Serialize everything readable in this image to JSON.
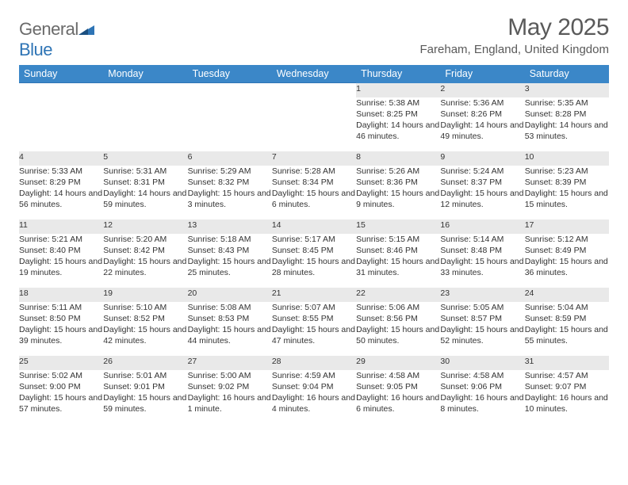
{
  "brand": {
    "name_a": "General",
    "name_b": "Blue"
  },
  "title": "May 2025",
  "location": "Fareham, England, United Kingdom",
  "colors": {
    "header_bg": "#3b87c8",
    "rule": "#2e74b5",
    "daynum_bg": "#e9e9e9",
    "text": "#333333"
  },
  "weekdays": [
    "Sunday",
    "Monday",
    "Tuesday",
    "Wednesday",
    "Thursday",
    "Friday",
    "Saturday"
  ],
  "weeks": [
    [
      null,
      null,
      null,
      null,
      {
        "n": "1",
        "sr": "5:38 AM",
        "ss": "8:25 PM",
        "dl": "14 hours and 46 minutes."
      },
      {
        "n": "2",
        "sr": "5:36 AM",
        "ss": "8:26 PM",
        "dl": "14 hours and 49 minutes."
      },
      {
        "n": "3",
        "sr": "5:35 AM",
        "ss": "8:28 PM",
        "dl": "14 hours and 53 minutes."
      }
    ],
    [
      {
        "n": "4",
        "sr": "5:33 AM",
        "ss": "8:29 PM",
        "dl": "14 hours and 56 minutes."
      },
      {
        "n": "5",
        "sr": "5:31 AM",
        "ss": "8:31 PM",
        "dl": "14 hours and 59 minutes."
      },
      {
        "n": "6",
        "sr": "5:29 AM",
        "ss": "8:32 PM",
        "dl": "15 hours and 3 minutes."
      },
      {
        "n": "7",
        "sr": "5:28 AM",
        "ss": "8:34 PM",
        "dl": "15 hours and 6 minutes."
      },
      {
        "n": "8",
        "sr": "5:26 AM",
        "ss": "8:36 PM",
        "dl": "15 hours and 9 minutes."
      },
      {
        "n": "9",
        "sr": "5:24 AM",
        "ss": "8:37 PM",
        "dl": "15 hours and 12 minutes."
      },
      {
        "n": "10",
        "sr": "5:23 AM",
        "ss": "8:39 PM",
        "dl": "15 hours and 15 minutes."
      }
    ],
    [
      {
        "n": "11",
        "sr": "5:21 AM",
        "ss": "8:40 PM",
        "dl": "15 hours and 19 minutes."
      },
      {
        "n": "12",
        "sr": "5:20 AM",
        "ss": "8:42 PM",
        "dl": "15 hours and 22 minutes."
      },
      {
        "n": "13",
        "sr": "5:18 AM",
        "ss": "8:43 PM",
        "dl": "15 hours and 25 minutes."
      },
      {
        "n": "14",
        "sr": "5:17 AM",
        "ss": "8:45 PM",
        "dl": "15 hours and 28 minutes."
      },
      {
        "n": "15",
        "sr": "5:15 AM",
        "ss": "8:46 PM",
        "dl": "15 hours and 31 minutes."
      },
      {
        "n": "16",
        "sr": "5:14 AM",
        "ss": "8:48 PM",
        "dl": "15 hours and 33 minutes."
      },
      {
        "n": "17",
        "sr": "5:12 AM",
        "ss": "8:49 PM",
        "dl": "15 hours and 36 minutes."
      }
    ],
    [
      {
        "n": "18",
        "sr": "5:11 AM",
        "ss": "8:50 PM",
        "dl": "15 hours and 39 minutes."
      },
      {
        "n": "19",
        "sr": "5:10 AM",
        "ss": "8:52 PM",
        "dl": "15 hours and 42 minutes."
      },
      {
        "n": "20",
        "sr": "5:08 AM",
        "ss": "8:53 PM",
        "dl": "15 hours and 44 minutes."
      },
      {
        "n": "21",
        "sr": "5:07 AM",
        "ss": "8:55 PM",
        "dl": "15 hours and 47 minutes."
      },
      {
        "n": "22",
        "sr": "5:06 AM",
        "ss": "8:56 PM",
        "dl": "15 hours and 50 minutes."
      },
      {
        "n": "23",
        "sr": "5:05 AM",
        "ss": "8:57 PM",
        "dl": "15 hours and 52 minutes."
      },
      {
        "n": "24",
        "sr": "5:04 AM",
        "ss": "8:59 PM",
        "dl": "15 hours and 55 minutes."
      }
    ],
    [
      {
        "n": "25",
        "sr": "5:02 AM",
        "ss": "9:00 PM",
        "dl": "15 hours and 57 minutes."
      },
      {
        "n": "26",
        "sr": "5:01 AM",
        "ss": "9:01 PM",
        "dl": "15 hours and 59 minutes."
      },
      {
        "n": "27",
        "sr": "5:00 AM",
        "ss": "9:02 PM",
        "dl": "16 hours and 1 minute."
      },
      {
        "n": "28",
        "sr": "4:59 AM",
        "ss": "9:04 PM",
        "dl": "16 hours and 4 minutes."
      },
      {
        "n": "29",
        "sr": "4:58 AM",
        "ss": "9:05 PM",
        "dl": "16 hours and 6 minutes."
      },
      {
        "n": "30",
        "sr": "4:58 AM",
        "ss": "9:06 PM",
        "dl": "16 hours and 8 minutes."
      },
      {
        "n": "31",
        "sr": "4:57 AM",
        "ss": "9:07 PM",
        "dl": "16 hours and 10 minutes."
      }
    ]
  ],
  "labels": {
    "sunrise": "Sunrise:",
    "sunset": "Sunset:",
    "daylight": "Daylight:"
  }
}
